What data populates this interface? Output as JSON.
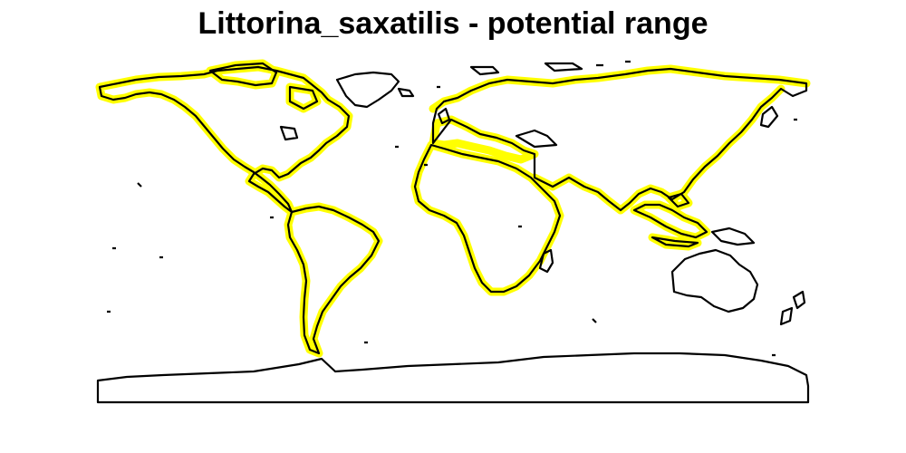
{
  "title": "Littorina_saxatilis - potential range",
  "colors": {
    "range_fill": "#ffff00",
    "outline": "#000000",
    "background": "#ffffff"
  },
  "map": {
    "projection": "equirectangular",
    "lon_range": [
      -180,
      180
    ],
    "lat_range": [
      -90,
      90
    ],
    "highlighted_range": "coastal band of the continents (potential range)"
  }
}
